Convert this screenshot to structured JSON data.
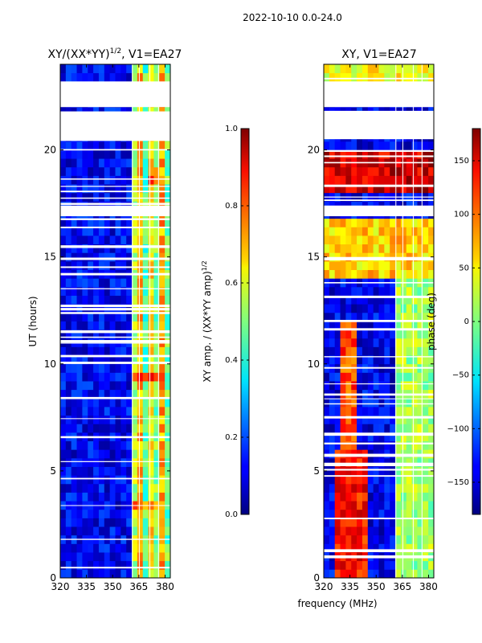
{
  "figure": {
    "suptitle": "2022-10-10 0.0-24.0",
    "xlabel_shared": "frequency (MHz)"
  },
  "chart_data": [
    {
      "type": "heatmap",
      "title": "XY/(XX*YY)",
      "title_exponent": "1/2",
      "title_suffix": ", V1=EA27",
      "xlabel": "",
      "ylabel": "UT (hours)",
      "xlim": [
        320,
        383
      ],
      "ylim": [
        0,
        24
      ],
      "xticks": [
        320,
        335,
        350,
        365,
        380
      ],
      "yticks": [
        0,
        5,
        10,
        15,
        20
      ],
      "colorbar": {
        "label": "XY amp. / (XX*YY amp)",
        "label_exponent": "1/2",
        "range": [
          0.0,
          1.0
        ],
        "ticks": [
          "0.0",
          "0.2",
          "0.4",
          "0.6",
          "0.8",
          "1.0"
        ],
        "colormap": "jet"
      },
      "background_value": 0.12,
      "bands": [
        {
          "x": [
            360,
            364
          ],
          "value": 0.55
        },
        {
          "x": [
            364,
            367
          ],
          "value": 0.7
        },
        {
          "x": [
            367,
            370
          ],
          "value": 0.45
        },
        {
          "x": [
            370,
            373
          ],
          "value": 0.65
        },
        {
          "x": [
            373,
            376
          ],
          "value": 0.5
        },
        {
          "x": [
            376,
            379
          ],
          "value": 0.72
        },
        {
          "x": [
            379,
            382
          ],
          "value": 0.48
        }
      ],
      "hot_spots": [
        {
          "x": [
            360,
            381
          ],
          "y": [
            9.2,
            9.8
          ],
          "value": 0.85
        },
        {
          "x": [
            371,
            376
          ],
          "y": [
            18.3,
            19.4
          ],
          "value": 0.8
        },
        {
          "x": [
            360,
            381
          ],
          "y": [
            3.2,
            3.5
          ],
          "value": 0.75
        }
      ],
      "flagged_hours": [
        [
          20.5,
          21.8
        ],
        [
          22.0,
          23.2
        ],
        [
          16.9,
          17.4
        ]
      ]
    },
    {
      "type": "heatmap",
      "title": "XY, V1=EA27",
      "xlabel": "",
      "ylabel": "",
      "xlim": [
        320,
        383
      ],
      "ylim": [
        0,
        24
      ],
      "xticks": [
        320,
        335,
        350,
        365,
        380
      ],
      "yticks": [
        0,
        5,
        10,
        15,
        20
      ],
      "colorbar": {
        "label": "phase (deg)",
        "range": [
          -180,
          180
        ],
        "ticks": [
          "150",
          "100",
          "50",
          "0",
          "−50",
          "−100",
          "−150"
        ],
        "colormap": "jet"
      },
      "background_value": -140,
      "regions": [
        {
          "x": [
            326,
            345
          ],
          "y": [
            0,
            6
          ],
          "value": 130
        },
        {
          "x": [
            330,
            338
          ],
          "y": [
            6,
            12
          ],
          "value": 110
        },
        {
          "x": [
            360,
            383
          ],
          "y": [
            0,
            14
          ],
          "value": 10
        },
        {
          "x": [
            320,
            383
          ],
          "y": [
            18.2,
            19.8
          ],
          "value": 150
        },
        {
          "x": [
            320,
            383
          ],
          "y": [
            22.3,
            24
          ],
          "value": 40
        },
        {
          "x": [
            320,
            383
          ],
          "y": [
            14,
            17
          ],
          "value": 60
        }
      ],
      "flagged_hours": [
        [
          20.5,
          21.8
        ],
        [
          22.0,
          23.2
        ],
        [
          16.9,
          17.4
        ]
      ]
    }
  ]
}
